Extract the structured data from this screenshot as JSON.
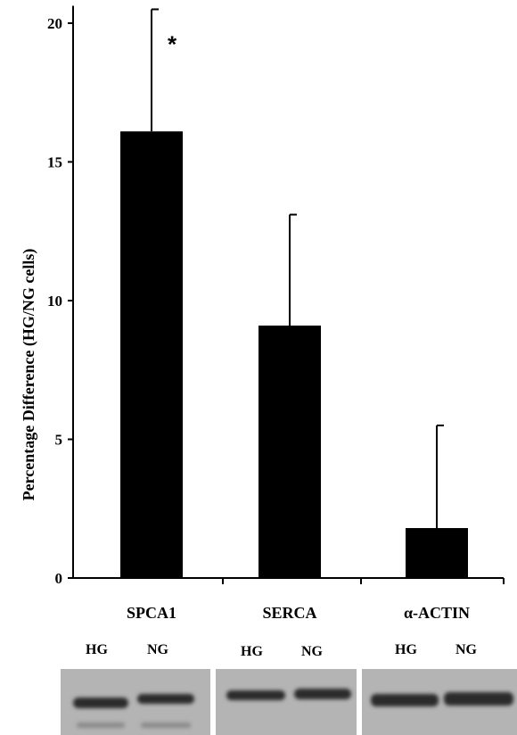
{
  "chart_data": {
    "type": "bar",
    "ylabel": "Percentage Difference (HG/NG cells)",
    "ylim": [
      0,
      20.5
    ],
    "y_ticks": [
      0,
      5,
      10,
      15,
      20
    ],
    "categories": [
      "SPCA1",
      "SERCA",
      "α-ACTIN"
    ],
    "values": [
      16.1,
      9.1,
      1.8
    ],
    "error_upper": [
      20.5,
      13.1,
      5.5
    ],
    "annotations": [
      {
        "category": "SPCA1",
        "text": "*"
      }
    ],
    "bar_color": "#000000",
    "grid": false
  },
  "blot": {
    "panels": [
      {
        "target": "SPCA1",
        "lanes": [
          "HG",
          "NG"
        ]
      },
      {
        "target": "SERCA",
        "lanes": [
          "HG",
          "NG"
        ]
      },
      {
        "target": "α-ACTIN",
        "lanes": [
          "HG",
          "NG"
        ]
      }
    ]
  }
}
